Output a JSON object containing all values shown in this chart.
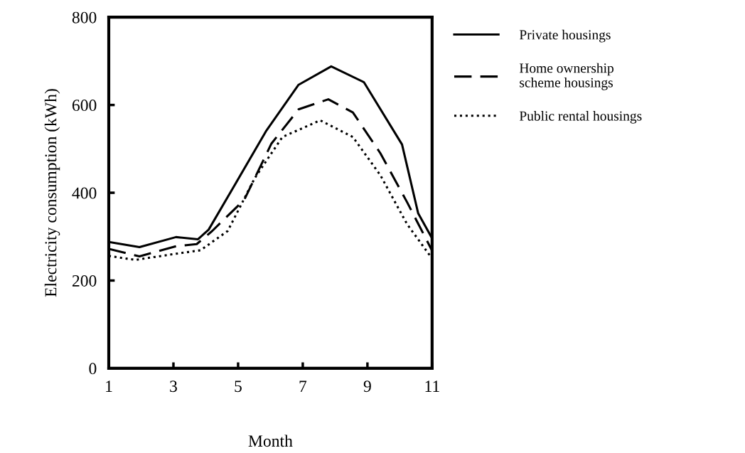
{
  "chart_data": {
    "type": "line",
    "xlabel": "Month",
    "ylabel": "Electricity consumption (kWh)",
    "xlim": [
      1,
      11
    ],
    "xticks": [
      1,
      3,
      5,
      7,
      9,
      11
    ],
    "ylim": [
      0,
      800
    ],
    "yticks": [
      0,
      200,
      400,
      600,
      800
    ],
    "grid": false,
    "legend": "right",
    "marker": "none",
    "series": [
      {
        "name": "Private housings",
        "color": "#000000",
        "line_style": "solid",
        "x": [
          1,
          1.95,
          3.08,
          3.76,
          4.09,
          4.93,
          5.86,
          6.87,
          7.88,
          8.89,
          10.07,
          10.57,
          11
        ],
        "values": [
          288,
          276,
          299,
          294,
          316,
          422,
          540,
          646,
          688,
          652,
          510,
          353,
          296
        ]
      },
      {
        "name": "Home ownership\nscheme housings",
        "color": "#000000",
        "line_style": "dashed",
        "x": [
          1,
          1.95,
          3.08,
          3.72,
          4.2,
          5.19,
          6.03,
          6.87,
          7.79,
          8.55,
          9.4,
          10.23,
          11
        ],
        "values": [
          272,
          255,
          278,
          283,
          313,
          384,
          512,
          590,
          613,
          583,
          490,
          378,
          268
        ]
      },
      {
        "name": "Public rental housings",
        "color": "#000000",
        "line_style": "dotted",
        "x": [
          1,
          1.82,
          3.08,
          3.84,
          4.68,
          5.52,
          6.37,
          7.54,
          8.55,
          9.4,
          10.23,
          11
        ],
        "values": [
          256,
          247,
          261,
          269,
          313,
          434,
          527,
          565,
          527,
          440,
          328,
          250
        ]
      }
    ]
  }
}
